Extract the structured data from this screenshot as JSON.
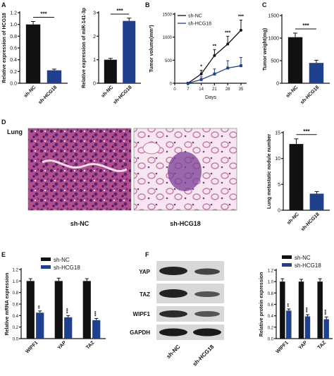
{
  "colors": {
    "nc": "#111111",
    "hcg": "#1f3f8f"
  },
  "panel_letters": [
    "A",
    "B",
    "C",
    "D",
    "E",
    "F"
  ],
  "panel_d": {
    "tissue_label": "Lung",
    "image_captions": [
      "sh-NC",
      "sh-HCG18"
    ]
  },
  "panel_f_blot": {
    "proteins": [
      "YAP",
      "TAZ",
      "WIPF1",
      "GAPDH"
    ],
    "lanes": [
      "sh-NC",
      "sh-HCG18"
    ]
  },
  "chart_data": [
    {
      "id": "a1",
      "type": "bar",
      "ylabel": "Relative expression of HCG18",
      "ylim": [
        0,
        1.2
      ],
      "yticks": [
        "0.0",
        "0.2",
        "0.4",
        "0.6",
        "0.8",
        "1.0",
        "1.2"
      ],
      "categories": [
        "sh-NC",
        "sh-HCG18"
      ],
      "values": [
        1.0,
        0.22
      ],
      "errors": [
        0.05,
        0.02
      ],
      "significance": "***"
    },
    {
      "id": "a2",
      "type": "bar",
      "ylabel": "Relative expression of miR-141-3p",
      "ylim": [
        0,
        3
      ],
      "yticks": [
        "0",
        "1",
        "2",
        "3"
      ],
      "categories": [
        "sh-NC",
        "sh-HCG18"
      ],
      "values": [
        1.0,
        2.65
      ],
      "errors": [
        0.06,
        0.12
      ],
      "significance": "***"
    },
    {
      "id": "b",
      "type": "line",
      "ylabel": "Tumor volume(mm³)",
      "xlabel": "Days",
      "x": [
        7,
        14,
        21,
        28,
        35
      ],
      "xticks": [
        "0",
        "7",
        "14",
        "21",
        "28",
        "35"
      ],
      "xlim": [
        0,
        38
      ],
      "ylim": [
        0,
        1500
      ],
      "yticks": [
        "0",
        "500",
        "1000",
        "1500"
      ],
      "series": [
        {
          "name": "sh-NC",
          "values": [
            0,
            200,
            600,
            850,
            1150
          ],
          "errors": [
            0,
            80,
            130,
            170,
            220
          ]
        },
        {
          "name": "sh-HCG18",
          "values": [
            0,
            80,
            200,
            330,
            380
          ],
          "errors": [
            0,
            60,
            110,
            160,
            180
          ]
        }
      ],
      "significance": [
        "",
        "*",
        "**",
        "***",
        "***"
      ],
      "legend": "top-left"
    },
    {
      "id": "c",
      "type": "bar",
      "ylabel": "Tumor weight(mg)",
      "ylim": [
        0,
        1500
      ],
      "yticks": [
        "0",
        "500",
        "1000",
        "1500"
      ],
      "categories": [
        "sh-NC",
        "sh-HCG18"
      ],
      "values": [
        1020,
        450
      ],
      "errors": [
        90,
        60
      ],
      "significance": "***"
    },
    {
      "id": "d",
      "type": "bar",
      "ylabel": "Lung metastatic nodule number",
      "ylim": [
        0,
        15
      ],
      "yticks": [
        "0",
        "5",
        "10",
        "15"
      ],
      "categories": [
        "sh-NC",
        "sh-HCG18"
      ],
      "values": [
        12.8,
        3.2
      ],
      "errors": [
        1.0,
        0.4
      ],
      "significance": "***"
    },
    {
      "id": "e",
      "type": "bar",
      "ylabel": "Relative mRNA expression",
      "ylim": [
        0,
        1.2
      ],
      "yticks": [
        "0.0",
        "0.2",
        "0.4",
        "0.6",
        "0.8",
        "1.0",
        "1.2"
      ],
      "categories": [
        "WIPF1",
        "YAP",
        "TAZ"
      ],
      "series": [
        {
          "name": "sh-NC",
          "values": [
            1.0,
            1.0,
            1.0
          ],
          "errors": [
            0.04,
            0.05,
            0.04
          ]
        },
        {
          "name": "sh-HCG18",
          "values": [
            0.45,
            0.37,
            0.32
          ],
          "errors": [
            0.03,
            0.03,
            0.03
          ]
        }
      ],
      "significance": [
        "**",
        "***",
        "***"
      ],
      "legend": "top"
    },
    {
      "id": "f",
      "type": "bar",
      "ylabel": "Relative protein expression",
      "ylim": [
        0,
        1.2
      ],
      "yticks": [
        "0.0",
        "0.2",
        "0.4",
        "0.6",
        "0.8",
        "1.0",
        "1.2"
      ],
      "categories": [
        "WIPF1",
        "YAP",
        "TAZ"
      ],
      "series": [
        {
          "name": "sh-NC",
          "values": [
            1.0,
            1.0,
            1.0
          ],
          "errors": [
            0.05,
            0.04,
            0.05
          ]
        },
        {
          "name": "sh-HCG18",
          "values": [
            0.49,
            0.39,
            0.34
          ],
          "errors": [
            0.03,
            0.03,
            0.04
          ]
        }
      ],
      "significance": [
        "**",
        "***",
        "***"
      ],
      "legend": "top"
    }
  ]
}
